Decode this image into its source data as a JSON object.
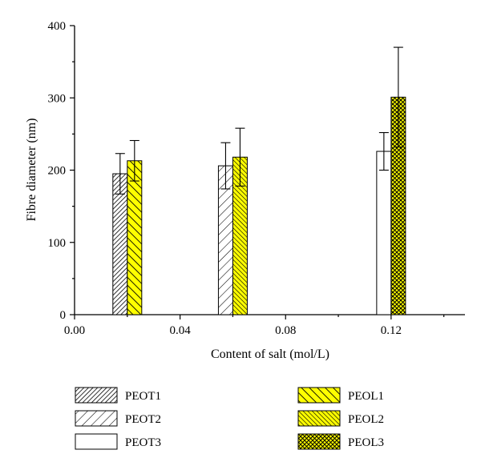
{
  "chart_data": {
    "type": "bar",
    "title": "",
    "xlabel": "Content of salt (mol/L)",
    "ylabel": "Fibre diameter (nm)",
    "xlim": [
      0.0,
      0.148
    ],
    "ylim": [
      0,
      400
    ],
    "x_ticks": [
      0.0,
      0.04,
      0.08,
      0.12
    ],
    "x_tick_labels": [
      "0.00",
      "0.04",
      "0.08",
      "0.12"
    ],
    "y_ticks": [
      0,
      100,
      200,
      300,
      400
    ],
    "y_tick_labels": [
      "0",
      "100",
      "200",
      "300",
      "400"
    ],
    "grid": false,
    "legend_position": "bottom",
    "series": [
      {
        "name": "PEOT1",
        "fill": "white",
        "pattern": "dense-diagonal-up",
        "points": [
          {
            "x": 0.02,
            "y": 195,
            "err": 28
          }
        ]
      },
      {
        "name": "PEOT2",
        "fill": "white",
        "pattern": "diagonal-up",
        "points": [
          {
            "x": 0.06,
            "y": 206,
            "err": 32
          }
        ]
      },
      {
        "name": "PEOT3",
        "fill": "white",
        "pattern": "none",
        "points": [
          {
            "x": 0.12,
            "y": 226,
            "err": 26
          }
        ]
      },
      {
        "name": "PEOL1",
        "fill": "#ffff00",
        "pattern": "diagonal-down",
        "points": [
          {
            "x": 0.02,
            "y": 213,
            "err": 28
          }
        ]
      },
      {
        "name": "PEOL2",
        "fill": "#ffff00",
        "pattern": "dense-diagonal-down",
        "points": [
          {
            "x": 0.06,
            "y": 218,
            "err": 40
          }
        ]
      },
      {
        "name": "PEOL3",
        "fill": "#ffff00",
        "pattern": "crosshatch",
        "points": [
          {
            "x": 0.12,
            "y": 301,
            "err": 69
          }
        ]
      }
    ]
  }
}
